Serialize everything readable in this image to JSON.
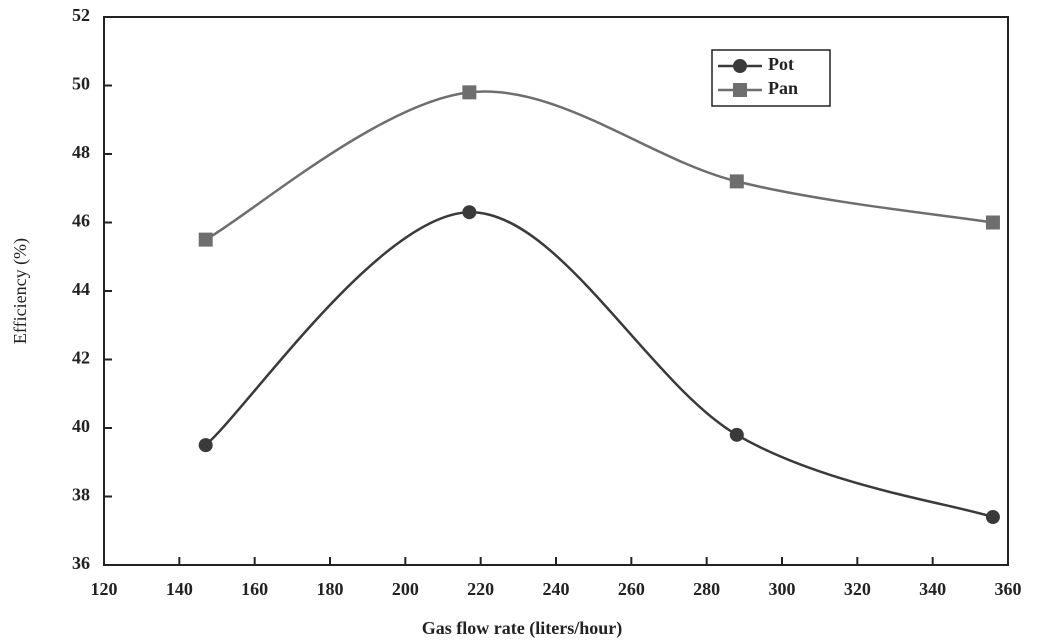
{
  "chart_data": {
    "type": "line",
    "x_label": "Gas flow rate (liters/hour)",
    "y_label": "Efficiency (%)",
    "x": [
      147,
      217,
      288,
      356
    ],
    "series": [
      {
        "name": "Pot",
        "color": "#3a3a3a",
        "marker": "circle",
        "values": [
          39.5,
          46.3,
          39.8,
          37.4
        ]
      },
      {
        "name": "Pan",
        "color": "#6e6e6e",
        "marker": "square",
        "values": [
          45.5,
          49.8,
          47.2,
          46.0
        ]
      }
    ],
    "xlim": [
      120,
      360
    ],
    "xticks": [
      120,
      140,
      160,
      180,
      200,
      220,
      240,
      260,
      280,
      300,
      320,
      340,
      360
    ],
    "ylim": [
      36,
      52
    ],
    "yticks": [
      36,
      38,
      40,
      42,
      44,
      46,
      48,
      50,
      52
    ],
    "smooth": true,
    "legend": "upper right"
  }
}
